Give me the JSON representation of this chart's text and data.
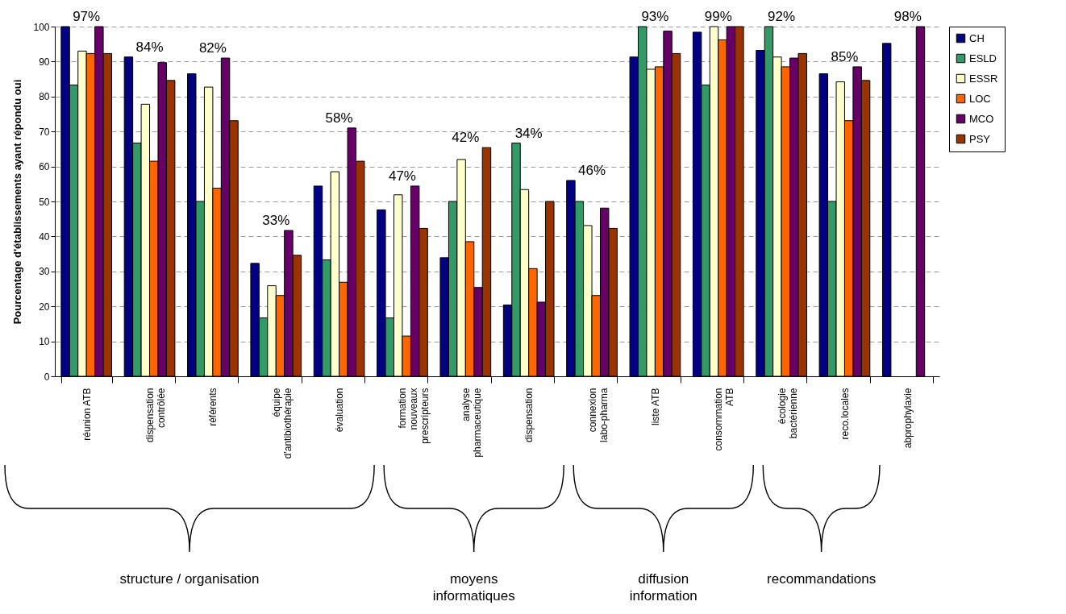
{
  "chart_data": {
    "type": "bar",
    "ylabel": "Pourcentage d'établissements ayant répondu oui",
    "categories": [
      "réunion ATB",
      "dispensation contrôlée",
      "référents",
      "équipe d'antibiothérapie",
      "évaluation",
      "formation nouveaux prescripteurs",
      "analyse pharmaceutique",
      "dispensation",
      "connexion labo-pharma",
      "liste ATB",
      "consommation ATB",
      "écologie bactérienne",
      "reco.locales",
      "abprophylaxie"
    ],
    "series": [
      {
        "name": "CH",
        "color": "#000080",
        "values": [
          100,
          91.3,
          86.5,
          32.3,
          54.4,
          47.6,
          33.9,
          20.4,
          56,
          91.3,
          98.4,
          93.2,
          86.5,
          95.2
        ]
      },
      {
        "name": "ESLD",
        "color": "#339966",
        "values": [
          83.3,
          66.7,
          50,
          16.7,
          33.3,
          16.7,
          50,
          66.7,
          50,
          100,
          83.3,
          100,
          50,
          null
        ]
      },
      {
        "name": "ESSR",
        "color": "#ffffcc",
        "values": [
          93,
          77.8,
          82.7,
          25.9,
          58.5,
          51.9,
          62,
          53.4,
          43.1,
          87.8,
          100,
          91.3,
          84.2,
          null
        ]
      },
      {
        "name": "LOC",
        "color": "#ff6600",
        "values": [
          92.3,
          61.5,
          53.8,
          23.1,
          26.9,
          11.5,
          38.5,
          30.8,
          23.1,
          88.5,
          96.2,
          88.5,
          73.1,
          null
        ]
      },
      {
        "name": "MCO",
        "color": "#660066",
        "values": [
          100,
          89.7,
          91,
          41.7,
          71,
          54.4,
          25.4,
          21.2,
          48.1,
          98.7,
          100,
          91,
          88.5,
          100
        ]
      },
      {
        "name": "PSY",
        "color": "#993300",
        "values": [
          92.3,
          84.6,
          73.1,
          34.6,
          61.5,
          42.3,
          65.4,
          50,
          42.3,
          92.3,
          100,
          92.3,
          84.6,
          null
        ]
      }
    ],
    "ylim": [
      0,
      100
    ],
    "yticks": [
      0,
      10,
      20,
      30,
      40,
      50,
      60,
      70,
      80,
      90,
      100
    ],
    "grid": "y",
    "legend": "right",
    "annotations": [
      "97%",
      "84%",
      "82%",
      "33%",
      "58%",
      "47%",
      "42%",
      "34%",
      "46%",
      "93%",
      "99%",
      "92%",
      "85%",
      "98%",
      "structure / organisation",
      "moyens informatiques",
      "diffusion information",
      "recommandations"
    ]
  }
}
